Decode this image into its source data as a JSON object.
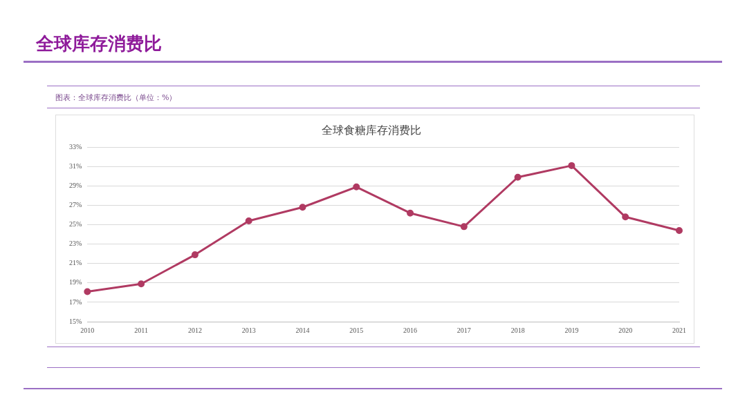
{
  "chart_data": {
    "type": "line",
    "title": "全球食糖库存消费比",
    "annotations": [
      "全球库存消费比",
      "图表：全球库存消费比（单位：%）"
    ],
    "categories": [
      "2010",
      "2011",
      "2012",
      "2013",
      "2014",
      "2015",
      "2016",
      "2017",
      "2018",
      "2019",
      "2020",
      "2021"
    ],
    "series": [
      {
        "color": "#b03a62",
        "values": [
          18.1,
          18.9,
          21.9,
          25.4,
          26.8,
          28.9,
          26.2,
          24.8,
          29.9,
          31.1,
          25.8,
          24.4
        ]
      }
    ],
    "ylim": [
      15,
      33
    ],
    "yticks": [
      {
        "value": 15,
        "label": "15%"
      },
      {
        "value": 17,
        "label": "17%"
      },
      {
        "value": 19,
        "label": "19%"
      },
      {
        "value": 21,
        "label": "21%"
      },
      {
        "value": 23,
        "label": "23%"
      },
      {
        "value": 25,
        "label": "25%"
      },
      {
        "value": 27,
        "label": "27%"
      },
      {
        "value": 29,
        "label": "29%"
      },
      {
        "value": 31,
        "label": "31%"
      },
      {
        "value": 33,
        "label": "33%"
      }
    ],
    "grid": "y",
    "legend": false,
    "marker": "circle",
    "line_style": "solid"
  }
}
